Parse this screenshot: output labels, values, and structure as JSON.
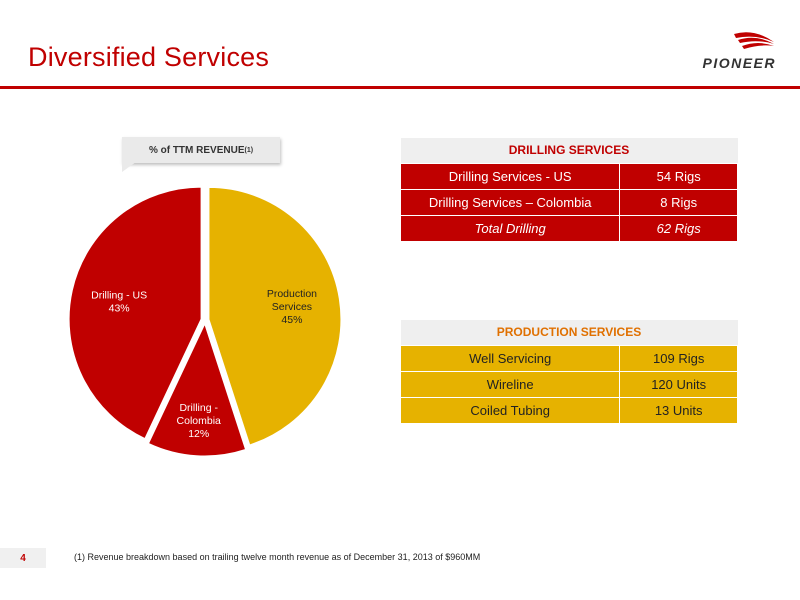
{
  "slide": {
    "title": "Diversified Services",
    "page_number": "4",
    "footnote": "(1)  Revenue breakdown based on trailing twelve month revenue as of December 31, 2013 of $960MM"
  },
  "logo": {
    "text": "PIONEER"
  },
  "callout": {
    "label": "% of TTM REVENUE",
    "superscript": "(1)"
  },
  "chart_data": {
    "type": "pie",
    "title": "% of TTM REVENUE",
    "slices": [
      {
        "name": "Production Services",
        "label_lines": [
          "Production",
          "Services"
        ],
        "value": 45,
        "value_label": "45%",
        "color": "#e6b200"
      },
      {
        "name": "Drilling - Colombia",
        "label_lines": [
          "Drilling -",
          "Colombia"
        ],
        "value": 12,
        "value_label": "12%",
        "color": "#c00000"
      },
      {
        "name": "Drilling - US",
        "label_lines": [
          "Drilling - US"
        ],
        "value": 43,
        "value_label": "43%",
        "color": "#c00000"
      }
    ],
    "start_angle_deg": 0,
    "direction": "clockwise"
  },
  "drilling": {
    "header": "DRILLING SERVICES",
    "rows": [
      {
        "name": "Drilling Services - US",
        "value": "54 Rigs"
      },
      {
        "name": "Drilling Services – Colombia",
        "value": "8 Rigs"
      },
      {
        "name": "Total Drilling",
        "value": "62 Rigs"
      }
    ]
  },
  "production": {
    "header": "PRODUCTION SERVICES",
    "rows": [
      {
        "name": "Well Servicing",
        "value": "109 Rigs"
      },
      {
        "name": "Wireline",
        "value": "120 Units"
      },
      {
        "name": "Coiled Tubing",
        "value": "13 Units"
      }
    ]
  },
  "colors": {
    "accent_red": "#c00000",
    "accent_gold": "#e6b200",
    "production_header": "#e07000"
  }
}
